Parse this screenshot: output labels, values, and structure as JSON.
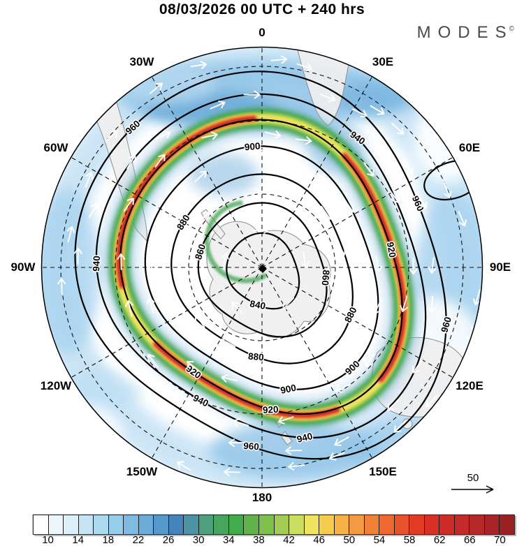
{
  "header": {
    "title": "08/03/2026  00 UTC  + 240 hrs",
    "brand": "MODES",
    "brand_mark": "©"
  },
  "map": {
    "longitude_labels": [
      "0",
      "30E",
      "60E",
      "90E",
      "120E",
      "150E",
      "180",
      "150W",
      "120W",
      "90W",
      "60W",
      "30W"
    ],
    "contour_levels": [
      "840",
      "860",
      "880",
      "900",
      "920",
      "940",
      "960"
    ],
    "contour_labels": [
      "840",
      "860",
      "860",
      "880",
      "880",
      "880",
      "900",
      "900",
      "900",
      "920",
      "920",
      "920",
      "940",
      "940",
      "940",
      "940",
      "960",
      "960",
      "960",
      "960"
    ],
    "arrow_legend_value": "50"
  },
  "colorbar": {
    "tick_labels": [
      "10",
      "14",
      "18",
      "22",
      "26",
      "30",
      "34",
      "38",
      "42",
      "46",
      "50",
      "54",
      "58",
      "62",
      "66",
      "70"
    ],
    "colors": [
      "#FFFFFF",
      "#EDF6FB",
      "#DDEFF8",
      "#C6E4F4",
      "#ABD9F0",
      "#97CDEB",
      "#7FBAE2",
      "#6BACD9",
      "#5498CC",
      "#4384BE",
      "#4B93A5",
      "#4D9F7F",
      "#47A55D",
      "#42AB4A",
      "#5FB34A",
      "#7EC04D",
      "#A2CC55",
      "#C9DE60",
      "#EFE35F",
      "#F6CC4E",
      "#F6B149",
      "#F49B41",
      "#F28138",
      "#EE682F",
      "#E95128",
      "#E23D24",
      "#DA3024",
      "#D02B27",
      "#C42A2A",
      "#B72829",
      "#A92426",
      "#992023"
    ]
  }
}
